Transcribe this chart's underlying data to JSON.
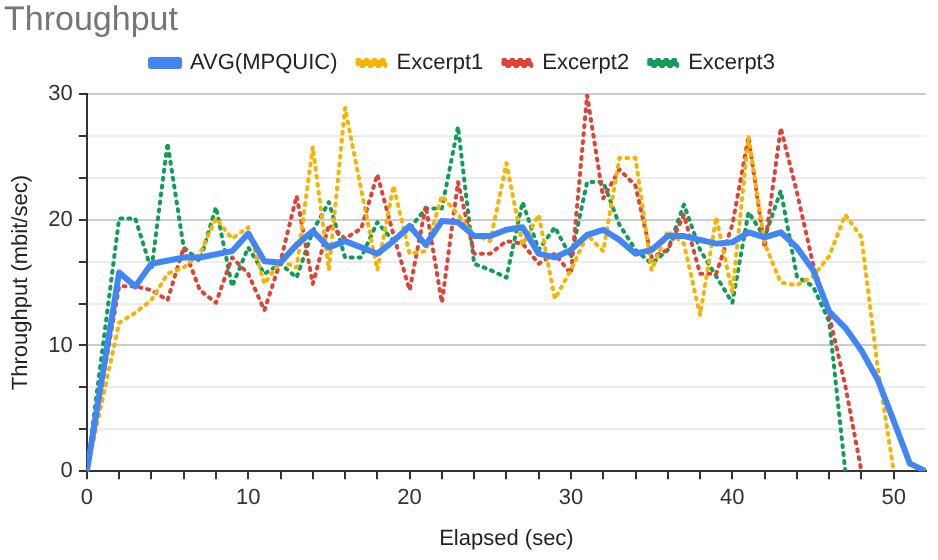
{
  "chart_data": {
    "type": "line",
    "title": "Throughput",
    "xlabel": "Elapsed (sec)",
    "ylabel": "Throughput (mbit/sec)",
    "xlim": [
      0,
      52
    ],
    "ylim": [
      0,
      30
    ],
    "xticks": [
      0,
      {
        "value": 2,
        "label": null
      },
      {
        "value": 4,
        "label": null
      },
      {
        "value": 6,
        "label": null
      },
      {
        "value": 8,
        "label": null
      },
      10,
      {
        "value": 12,
        "label": null
      },
      {
        "value": 14,
        "label": null
      },
      {
        "value": 16,
        "label": null
      },
      {
        "value": 18,
        "label": null
      },
      20,
      {
        "value": 22,
        "label": null
      },
      {
        "value": 24,
        "label": null
      },
      {
        "value": 26,
        "label": null
      },
      {
        "value": 28,
        "label": null
      },
      30,
      {
        "value": 32,
        "label": null
      },
      {
        "value": 34,
        "label": null
      },
      {
        "value": 36,
        "label": null
      },
      {
        "value": 38,
        "label": null
      },
      40,
      {
        "value": 42,
        "label": null
      },
      {
        "value": 44,
        "label": null
      },
      {
        "value": 46,
        "label": null
      },
      {
        "value": 48,
        "label": null
      },
      50
    ],
    "yticks": [
      0,
      {
        "value": 3.33,
        "label": null
      },
      {
        "value": 6.67,
        "label": null
      },
      10,
      {
        "value": 13.33,
        "label": null
      },
      {
        "value": 16.67,
        "label": null
      },
      20,
      {
        "value": 23.33,
        "label": null
      },
      {
        "value": 26.67,
        "label": null
      },
      30
    ],
    "grid": "y",
    "legend": "top",
    "marker": "none",
    "series": [
      {
        "name": "AVG(MPQUIC)",
        "color": "#4285f4",
        "line_style": "solid",
        "x": [
          0,
          2,
          3,
          4,
          6,
          7,
          9,
          10,
          11,
          12,
          13,
          14,
          15,
          16,
          17,
          18,
          19,
          20,
          21,
          22,
          23,
          24,
          25,
          26,
          27,
          28,
          29,
          30,
          31,
          32,
          33,
          34,
          35,
          36,
          37,
          38,
          39,
          40,
          41,
          42,
          43,
          44,
          45,
          46,
          47,
          48,
          49,
          50,
          51,
          52
        ],
        "values": [
          0,
          15.8,
          14.7,
          16.5,
          17,
          17,
          17.5,
          18.9,
          16.7,
          16.6,
          18,
          19.1,
          17.8,
          18.3,
          17.8,
          17.3,
          18.3,
          19.5,
          18,
          19.9,
          19.8,
          18.7,
          18.7,
          19.2,
          19.4,
          17.3,
          17,
          17.6,
          18.8,
          19.2,
          18.4,
          17.3,
          17.6,
          18.7,
          18.7,
          18.4,
          18.1,
          18.2,
          19,
          18.6,
          19,
          17.8,
          16,
          12.7,
          11.4,
          9.6,
          7.3,
          4,
          0.6,
          0
        ]
      },
      {
        "name": "Excerpt1",
        "color": "#f4b400",
        "line_style": "dotted",
        "x": [
          0,
          2,
          3,
          4,
          5,
          6,
          7,
          8,
          9,
          10,
          11,
          12,
          13,
          14,
          15,
          16,
          17,
          18,
          19,
          20,
          21,
          22,
          23,
          24,
          25,
          26,
          27,
          28,
          29,
          30,
          31,
          32,
          33,
          34,
          35,
          36,
          37,
          38,
          39,
          40,
          41,
          42,
          43,
          44,
          45,
          46,
          47,
          48,
          49,
          50
        ],
        "values": [
          0,
          11.8,
          12.6,
          13.6,
          15.7,
          16.2,
          17.3,
          20.1,
          18.5,
          19.4,
          14.9,
          16.7,
          16.2,
          25.8,
          16,
          28.9,
          22.4,
          16,
          22.7,
          17.3,
          17.5,
          21.9,
          20.4,
          18.8,
          18.3,
          24.5,
          18,
          20.4,
          13.7,
          16,
          18.8,
          17.5,
          24.9,
          24.9,
          16,
          19.1,
          18.1,
          12.4,
          20.2,
          14.2,
          26.6,
          18.1,
          15,
          14.8,
          15.5,
          17.1,
          20.4,
          18.6,
          8.3,
          0
        ]
      },
      {
        "name": "Excerpt2",
        "color": "#db4437",
        "line_style": "dotted",
        "x": [
          0,
          2,
          3,
          4,
          5,
          6,
          7,
          8,
          9,
          10,
          11,
          12,
          13,
          14,
          15,
          16,
          17,
          18,
          19,
          20,
          21,
          22,
          23,
          24,
          25,
          26,
          27,
          28,
          29,
          30,
          31,
          32,
          33,
          34,
          35,
          36,
          37,
          38,
          39,
          40,
          41,
          42,
          43,
          44,
          45,
          46,
          47,
          48
        ],
        "values": [
          0,
          14.7,
          14.7,
          14.4,
          13.6,
          17.8,
          14.4,
          13.4,
          17,
          15.7,
          12.8,
          16.7,
          21.9,
          14.9,
          19.6,
          18.5,
          19.3,
          23.6,
          18.8,
          14.4,
          21.1,
          13.4,
          23,
          17.3,
          17.3,
          18.3,
          18.1,
          16.5,
          17.3,
          15.7,
          29.9,
          21.7,
          24,
          22.7,
          17,
          17.6,
          20.4,
          15.7,
          15.7,
          19.6,
          26.6,
          17.8,
          27.3,
          22.2,
          16.5,
          12.4,
          6.8,
          0
        ]
      },
      {
        "name": "Excerpt3",
        "color": "#0f9d58",
        "line_style": "dotted",
        "x": [
          0,
          2,
          3,
          4,
          5,
          6,
          7,
          8,
          9,
          10,
          11,
          12,
          13,
          14,
          15,
          16,
          17,
          18,
          19,
          20,
          21,
          22,
          23,
          24,
          25,
          26,
          27,
          28,
          29,
          30,
          31,
          32,
          33,
          34,
          35,
          36,
          37,
          38,
          39,
          40,
          41,
          42,
          43,
          44,
          45,
          46,
          47
        ],
        "values": [
          0,
          20.1,
          20.1,
          16,
          26.1,
          17.8,
          16.7,
          21,
          14.7,
          17.8,
          15.7,
          16.5,
          15.4,
          19.1,
          21.4,
          17,
          17,
          19.8,
          18.3,
          19.3,
          20.9,
          20.9,
          27.4,
          16.5,
          16,
          15.4,
          21.4,
          17.6,
          19.4,
          17,
          23,
          23,
          19.6,
          17.6,
          16.5,
          17.6,
          21.2,
          17.6,
          15.5,
          13.4,
          20.6,
          18.6,
          22.3,
          15.5,
          14.7,
          11.9,
          0
        ]
      }
    ]
  }
}
